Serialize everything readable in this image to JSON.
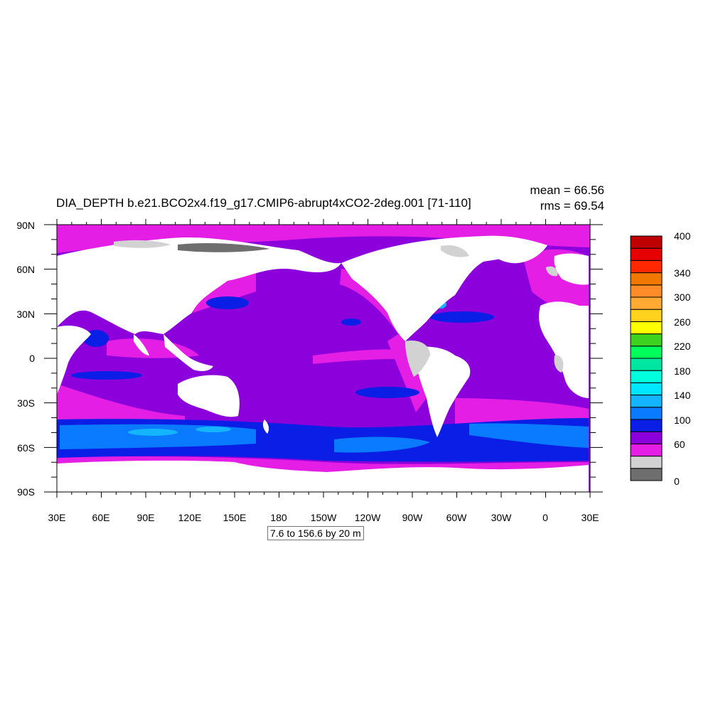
{
  "title": "DIA_DEPTH b.e21.BCO2x4.f19_g17.CMIP6-abrupt4xCO2-2deg.001 [71-110]",
  "stats": {
    "mean": "mean = 66.56",
    "rms": "rms = 69.54"
  },
  "info_box": "7.6 to 156.6 by 20 m",
  "lat_labels": [
    "90N",
    "60N",
    "30N",
    "0",
    "30S",
    "60S",
    "90S"
  ],
  "lon_labels": [
    "30E",
    "60E",
    "90E",
    "120E",
    "150E",
    "180",
    "150W",
    "120W",
    "90W",
    "60W",
    "30W",
    "0",
    "30E"
  ],
  "colorbar": {
    "colors_bottom_to_top": [
      "#6e6e6e",
      "#d2d2d2",
      "#e51ee5",
      "#8c00dc",
      "#0a1ee6",
      "#0a7aff",
      "#14b4ff",
      "#00e6ff",
      "#00ffdc",
      "#00e6a0",
      "#00ff5a",
      "#3cd21e",
      "#ffff00",
      "#ffd21e",
      "#ffaa32",
      "#ff8c28",
      "#f07800",
      "#ff2800",
      "#e60000",
      "#be0000"
    ],
    "labels": [
      "400",
      "340",
      "300",
      "260",
      "220",
      "180",
      "140",
      "100",
      "60",
      "0"
    ]
  },
  "map": {
    "ocean_fill_meaning_default": "#8c00dc",
    "shelf_color": "#e51ee5",
    "south_band_color": "#0a1ee6",
    "south_core_color": "#0a7aff",
    "south_peak_color": "#14b4ff",
    "land_color": "#ffffff",
    "ice_light": "#d2d2d2",
    "ice_dark": "#6e6e6e"
  }
}
